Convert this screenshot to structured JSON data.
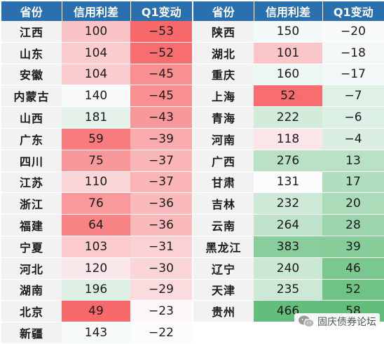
{
  "headers": [
    "省份",
    "信用利差",
    "Q1变动"
  ],
  "left_rows": [
    {
      "province": "江西",
      "spread": 100,
      "change": -53
    },
    {
      "province": "山东",
      "spread": 104,
      "change": -52
    },
    {
      "province": "安徽",
      "spread": 104,
      "change": -45
    },
    {
      "province": "内蒙古",
      "spread": 140,
      "change": -45
    },
    {
      "province": "山西",
      "spread": 181,
      "change": -43
    },
    {
      "province": "广东",
      "spread": 59,
      "change": -39
    },
    {
      "province": "四川",
      "spread": 75,
      "change": -37
    },
    {
      "province": "江苏",
      "spread": 110,
      "change": -37
    },
    {
      "province": "浙江",
      "spread": 76,
      "change": -36
    },
    {
      "province": "福建",
      "spread": 64,
      "change": -36
    },
    {
      "province": "宁夏",
      "spread": 103,
      "change": -31
    },
    {
      "province": "河北",
      "spread": 120,
      "change": -30
    },
    {
      "province": "湖南",
      "spread": 196,
      "change": -29
    },
    {
      "province": "北京",
      "spread": 49,
      "change": -23
    },
    {
      "province": "新疆",
      "spread": 143,
      "change": -22
    }
  ],
  "right_rows": [
    {
      "province": "陕西",
      "spread": 150,
      "change": -20
    },
    {
      "province": "湖北",
      "spread": 101,
      "change": -18
    },
    {
      "province": "重庆",
      "spread": 160,
      "change": -17
    },
    {
      "province": "上海",
      "spread": 52,
      "change": -7
    },
    {
      "province": "青海",
      "spread": 222,
      "change": -6
    },
    {
      "province": "河南",
      "spread": 118,
      "change": -4
    },
    {
      "province": "广西",
      "spread": 276,
      "change": 13
    },
    {
      "province": "甘肃",
      "spread": 131,
      "change": 17
    },
    {
      "province": "吉林",
      "spread": 232,
      "change": 20
    },
    {
      "province": "云南",
      "spread": 264,
      "change": 28
    },
    {
      "province": "黑龙江",
      "spread": 383,
      "change": 39
    },
    {
      "province": "辽宁",
      "spread": 240,
      "change": 46
    },
    {
      "province": "天津",
      "spread": 235,
      "change": 52
    },
    {
      "province": "贵州",
      "spread": 466,
      "change": 58
    }
  ],
  "colors": {
    "header_bg": "#2a6fae",
    "header_text": "#ffffff",
    "province_bg": "#f2f2f2",
    "low_red": "#f8696b",
    "mid_white": "#fcfcff",
    "high_green": "#63be7b"
  },
  "watermark": {
    "text": "固庆债券论坛",
    "icon": "wechat-icon"
  }
}
